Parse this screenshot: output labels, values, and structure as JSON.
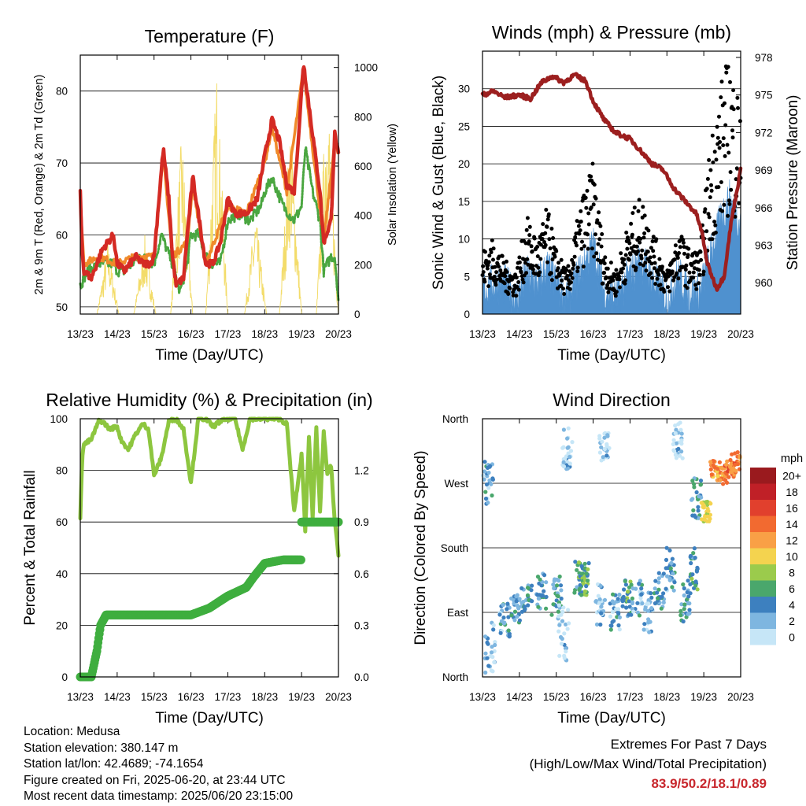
{
  "x_ticks": [
    "13/23",
    "14/23",
    "15/23",
    "16/23",
    "17/23",
    "18/23",
    "19/23",
    "20/23"
  ],
  "x_label": "Time (Day/UTC)",
  "colors": {
    "temp2m": "#d42a24",
    "temp9m": "#f08a2a",
    "dewpoint": "#4aa640",
    "solar": "#f3dc6a",
    "wind": "#4f91cf",
    "gust": "#000000",
    "pressure": "#9c1f1f",
    "rh": "#8dc63f",
    "precip": "#3fae3f",
    "extremes": "#c8272d"
  },
  "chart_data": [
    {
      "type": "line",
      "title": "Temperature (F)",
      "xlabel": "Time (Day/UTC)",
      "ylabel": "2m & 9m T (Red, Orange) & 2m Td (Green)",
      "y2label": "Solar Insolation (Yellow)",
      "ylim": [
        49,
        85
      ],
      "yticks": [
        50,
        60,
        70,
        80
      ],
      "y2lim": [
        0,
        1050
      ],
      "y2ticks": [
        0,
        200,
        400,
        600,
        800,
        1000
      ],
      "xlim": [
        0,
        7
      ],
      "series": [
        {
          "name": "2m T",
          "color": "#d42a24",
          "x": [
            0,
            0.05,
            0.1,
            0.3,
            0.6,
            0.9,
            1.0,
            1.2,
            1.5,
            1.7,
            1.9,
            2.0,
            2.1,
            2.25,
            2.4,
            2.5,
            2.6,
            2.8,
            2.9,
            3.05,
            3.2,
            3.4,
            3.6,
            3.8,
            4.0,
            4.2,
            4.5,
            4.8,
            5.0,
            5.2,
            5.4,
            5.6,
            5.8,
            5.95,
            6.05,
            6.15,
            6.3,
            6.5,
            6.6,
            6.8,
            6.9,
            7.0
          ],
          "y": [
            66,
            58,
            55,
            54,
            58,
            60,
            56,
            55,
            57,
            56,
            56,
            57,
            63,
            72,
            65,
            57,
            53,
            54,
            60,
            68,
            63,
            56,
            56,
            59,
            65,
            63,
            63,
            65,
            71,
            76,
            73,
            67,
            66,
            76,
            84,
            80,
            74,
            66,
            59,
            62,
            74,
            71
          ]
        },
        {
          "name": "9m T",
          "color": "#f08a2a",
          "x": [
            0,
            0.1,
            0.5,
            1.0,
            1.5,
            2.0,
            2.25,
            2.5,
            2.9,
            3.05,
            3.4,
            4.0,
            4.5,
            5.0,
            5.2,
            5.6,
            6.05,
            6.6,
            6.9,
            7.0
          ],
          "y": [
            65,
            56,
            57,
            56,
            57,
            57,
            71,
            57,
            59,
            67,
            56,
            64,
            63,
            70,
            75,
            66,
            83,
            59,
            73,
            71
          ]
        },
        {
          "name": "2m Td",
          "color": "#4aa640",
          "x": [
            0,
            0.2,
            0.5,
            0.9,
            1.0,
            1.2,
            1.6,
            2.0,
            2.2,
            2.5,
            2.7,
            2.9,
            3.0,
            3.2,
            3.5,
            3.8,
            4.0,
            4.3,
            4.6,
            4.9,
            5.0,
            5.2,
            5.5,
            5.8,
            6.0,
            6.1,
            6.3,
            6.5,
            6.6,
            6.8,
            6.9,
            7.0
          ],
          "y": [
            53,
            55,
            56,
            56,
            55,
            55,
            57,
            56,
            60,
            56,
            52,
            56,
            60,
            60,
            56,
            56,
            62,
            63,
            62,
            64,
            66,
            68,
            64,
            62,
            64,
            72,
            66,
            62,
            55,
            57,
            57,
            51
          ]
        },
        {
          "name": "Solar",
          "color": "#f3dc6a",
          "axis": "right",
          "peaks": [
            [
              0.75,
              300
            ],
            [
              1.75,
              320
            ],
            [
              2.75,
              750
            ],
            [
              3.7,
              1000
            ],
            [
              4.75,
              420
            ],
            [
              5.7,
              800
            ],
            [
              6.7,
              1000
            ]
          ]
        }
      ]
    },
    {
      "type": "line",
      "title": "Winds (mph) & Pressure (mb)",
      "xlabel": "Time (Day/UTC)",
      "ylabel": "Sonic Wind & Gust (Blue, Black)",
      "y2label": "Station Pressure (Maroon)",
      "ylim": [
        0,
        35
      ],
      "yticks": [
        0,
        5,
        10,
        15,
        20,
        25,
        30
      ],
      "y2lim": [
        957.5,
        978.5
      ],
      "y2ticks": [
        960,
        963,
        966,
        969,
        972,
        975,
        978
      ],
      "xlim": [
        0,
        7
      ],
      "series": [
        {
          "name": "Wind",
          "color": "#4f91cf",
          "x": [
            0,
            0.3,
            0.6,
            0.9,
            1.2,
            1.5,
            1.75,
            2.0,
            2.3,
            2.7,
            3.0,
            3.3,
            3.6,
            4.0,
            4.3,
            4.7,
            5.0,
            5.3,
            5.6,
            5.9,
            6.2,
            6.5,
            6.7,
            7.0
          ],
          "y": [
            3,
            4,
            4,
            2,
            5,
            4,
            6,
            4,
            2,
            6,
            9,
            3,
            2,
            5,
            7,
            4,
            2,
            5,
            3,
            3,
            8,
            13,
            15,
            12
          ]
        },
        {
          "name": "Gust",
          "color": "#000000",
          "x": [
            0,
            0.3,
            0.6,
            0.9,
            1.2,
            1.5,
            1.75,
            2.0,
            2.3,
            2.7,
            3.0,
            3.3,
            3.6,
            4.0,
            4.3,
            4.7,
            5.0,
            5.3,
            5.6,
            5.9,
            6.2,
            6.5,
            6.7,
            7.0
          ],
          "y": [
            6,
            7,
            5,
            4,
            9,
            7,
            10,
            6,
            4,
            11,
            14,
            6,
            4,
            9,
            11,
            7,
            4,
            8,
            6,
            6,
            17,
            22,
            24,
            20
          ]
        },
        {
          "name": "Pressure",
          "color": "#9c1f1f",
          "axis": "right",
          "x": [
            0,
            0.3,
            0.6,
            1.0,
            1.3,
            1.6,
            1.9,
            2.2,
            2.5,
            2.8,
            3.0,
            3.3,
            3.6,
            4.0,
            4.3,
            4.6,
            4.9,
            5.2,
            5.5,
            5.8,
            5.95,
            6.1,
            6.35,
            6.55,
            6.75,
            7.0
          ],
          "y": [
            975.0,
            975.3,
            974.8,
            975.0,
            974.7,
            976.0,
            976.5,
            976.0,
            976.6,
            976.1,
            974.5,
            973.0,
            972.0,
            971.5,
            970.5,
            969.5,
            969.0,
            967.5,
            966.5,
            965.5,
            964.0,
            961.5,
            959.5,
            960.5,
            965.0,
            969.0
          ]
        }
      ]
    },
    {
      "type": "line",
      "title": "Relative Humidity (%) & Precipitation (in)",
      "xlabel": "Time (Day/UTC)",
      "ylabel": "Percent & Total Rainfall",
      "ylim": [
        0,
        100
      ],
      "yticks": [
        0,
        20,
        40,
        60,
        80,
        100
      ],
      "y2lim": [
        0,
        1.5
      ],
      "y2ticks": [
        "0.0",
        "0.3",
        "0.6",
        "0.9",
        "1.2"
      ],
      "xlim": [
        0,
        7
      ],
      "series": [
        {
          "name": "RH",
          "color": "#8dc63f",
          "x": [
            0,
            0.05,
            0.1,
            0.3,
            0.5,
            0.6,
            0.8,
            1.0,
            1.1,
            1.3,
            1.5,
            1.7,
            1.85,
            2.0,
            2.2,
            2.4,
            2.6,
            2.8,
            3.0,
            3.2,
            3.4,
            3.6,
            3.8,
            4.0,
            4.2,
            4.4,
            4.6,
            4.8,
            5.0,
            5.2,
            5.4,
            5.6,
            5.8,
            6.0,
            6.1,
            6.2,
            6.3,
            6.4,
            6.5,
            6.6,
            6.7,
            6.8,
            6.9,
            7.0
          ],
          "y": [
            62,
            85,
            90,
            92,
            99,
            99,
            96,
            97,
            92,
            88,
            94,
            98,
            96,
            78,
            85,
            99,
            100,
            96,
            75,
            100,
            100,
            97,
            99,
            100,
            100,
            88,
            100,
            100,
            100,
            100,
            100,
            98,
            64,
            86,
            57,
            93,
            62,
            96,
            64,
            95,
            78,
            82,
            60,
            47
          ]
        },
        {
          "name": "Precip",
          "color": "#3fae3f",
          "axis": "right",
          "x": [
            0,
            0.3,
            0.45,
            0.55,
            0.7,
            3.0,
            3.5,
            4.0,
            4.5,
            4.7,
            5.0,
            5.5,
            6.0,
            6.0,
            6.5,
            7.0
          ],
          "y": [
            0,
            0,
            0.15,
            0.3,
            0.36,
            0.36,
            0.4,
            0.47,
            0.52,
            0.58,
            0.66,
            0.68,
            0.7,
            0.9,
            0.91,
            0.91
          ]
        }
      ]
    },
    {
      "type": "scatter",
      "title": "Wind Direction",
      "xlabel": "Time (Day/UTC)",
      "ylabel": "Direction (Colored By Speed)",
      "yticks": [
        "North",
        "East",
        "South",
        "West",
        "North"
      ],
      "ylim": [
        0,
        360
      ],
      "xlim": [
        0,
        7
      ],
      "legend_title": "mph",
      "legend_position": "right",
      "legend": [
        {
          "label": "20+",
          "color": "#9a1a1e"
        },
        {
          "label": "18",
          "color": "#c02027"
        },
        {
          "label": "16",
          "color": "#e1402d"
        },
        {
          "label": "14",
          "color": "#f26a30"
        },
        {
          "label": "12",
          "color": "#f9a046"
        },
        {
          "label": "10",
          "color": "#f4d34f"
        },
        {
          "label": "8",
          "color": "#9bcb4c"
        },
        {
          "label": "6",
          "color": "#4aa76c"
        },
        {
          "label": "4",
          "color": "#3d80bf"
        },
        {
          "label": "2",
          "color": "#7eb6e0"
        },
        {
          "label": "0",
          "color": "#c6e6f7"
        }
      ],
      "clusters": [
        [
          0.15,
          270,
          30,
          3
        ],
        [
          0.2,
          40,
          40,
          2
        ],
        [
          0.6,
          80,
          25,
          3
        ],
        [
          0.9,
          100,
          25,
          3
        ],
        [
          1.2,
          110,
          20,
          4
        ],
        [
          1.6,
          120,
          25,
          4
        ],
        [
          2.0,
          110,
          30,
          4
        ],
        [
          2.2,
          60,
          40,
          1
        ],
        [
          2.3,
          320,
          30,
          1
        ],
        [
          2.6,
          140,
          25,
          5
        ],
        [
          2.75,
          135,
          25,
          6
        ],
        [
          3.2,
          100,
          30,
          2
        ],
        [
          3.3,
          320,
          20,
          1
        ],
        [
          3.6,
          90,
          25,
          3
        ],
        [
          3.9,
          110,
          25,
          5
        ],
        [
          4.2,
          110,
          25,
          3
        ],
        [
          4.5,
          90,
          30,
          2
        ],
        [
          4.8,
          120,
          25,
          4
        ],
        [
          5.1,
          150,
          30,
          3
        ],
        [
          5.3,
          330,
          25,
          1
        ],
        [
          5.5,
          100,
          30,
          4
        ],
        [
          5.7,
          150,
          30,
          5
        ],
        [
          5.8,
          250,
          30,
          4
        ],
        [
          6.05,
          230,
          15,
          9
        ],
        [
          6.3,
          290,
          15,
          12
        ],
        [
          6.5,
          280,
          12,
          13
        ],
        [
          6.7,
          290,
          12,
          14
        ],
        [
          6.85,
          300,
          15,
          13
        ]
      ]
    }
  ],
  "info": {
    "location": "Location: Medusa",
    "elevation": "Station elevation: 380.147 m",
    "latlon": "Station lat/lon: 42.4689; -74.1654",
    "created": "Figure created on Fri, 2025-06-20, at 23:44 UTC",
    "latest": "Most recent data timestamp: 2025/06/20 23:15:00"
  },
  "extremes": {
    "title": "Extremes For Past 7 Days",
    "subtitle": "(High/Low/Max Wind/Total Precipitation)",
    "values": "83.9/50.2/18.1/0.89"
  }
}
